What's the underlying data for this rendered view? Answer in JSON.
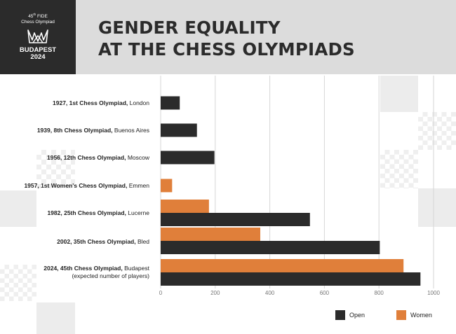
{
  "logo": {
    "edition_line1": "45",
    "edition_sup": "th",
    "edition_line1b": " FIDE",
    "edition_line2": "Chess Olympiad",
    "city": "BUDAPEST",
    "year": "2024"
  },
  "title_line1": "GENDER EQUALITY",
  "title_line2": "AT THE CHESS OLYMPIADS",
  "colors": {
    "open": "#2b2b2b",
    "women": "#e07f3a",
    "header_bg": "#dcdcdc",
    "logo_bg": "#2b2b2b"
  },
  "chart_data": {
    "type": "bar",
    "orientation": "horizontal",
    "categories": [
      {
        "bold": "1927, 1st Chess Olympiad,",
        "rest": " London"
      },
      {
        "bold": "1939, 8th Chess Olympiad,",
        "rest": " Buenos Aires"
      },
      {
        "bold": "1956, 12th Chess Olympiad,",
        "rest": " Moscow"
      },
      {
        "bold": "1957, 1st Women's Chess Olympiad,",
        "rest": " Emmen"
      },
      {
        "bold": "1982,  25th Chess Olympiad,",
        "rest": " Lucerne"
      },
      {
        "bold": "2002, 35th Chess Olympiad,",
        "rest": " Bled"
      },
      {
        "bold": "2024, 45th Chess Olympiad,",
        "rest": " Budapest",
        "line2": "(expected number of players)"
      }
    ],
    "series": [
      {
        "name": "Open",
        "values": [
          70,
          133,
          197,
          null,
          547,
          803,
          952
        ]
      },
      {
        "name": "Women",
        "values": [
          null,
          null,
          null,
          42,
          177,
          365,
          890
        ]
      }
    ],
    "xlim": [
      0,
      1000
    ],
    "xticks": [
      "0",
      "200",
      "400",
      "600",
      "800",
      "1000"
    ],
    "grid": true,
    "legend": "bottom-right"
  }
}
